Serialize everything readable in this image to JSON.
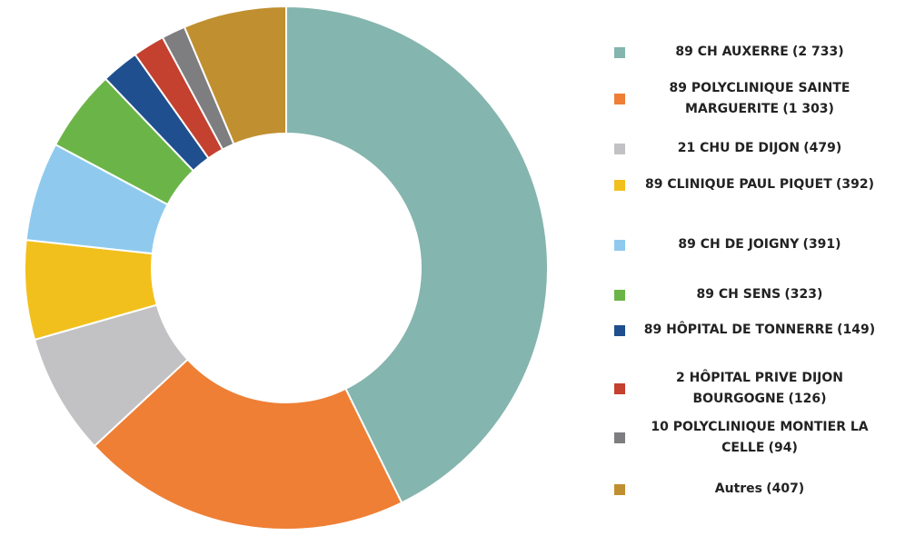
{
  "chart_data": {
    "type": "donut",
    "categories": [
      "89 CH AUXERRE",
      "89 POLYCLINIQUE SAINTE MARGUERITE",
      "21 CHU DE DIJON",
      "89 CLINIQUE PAUL PIQUET",
      "89 CH DE JOIGNY",
      "89 CH SENS",
      "89 HÔPITAL DE TONNERRE",
      "2 HÔPITAL PRIVE DIJON BOURGOGNE",
      "10 POLYCLINIQUE MONTIER LA CELLE",
      "Autres"
    ],
    "values": [
      2733,
      1303,
      479,
      392,
      391,
      323,
      149,
      126,
      94,
      407
    ],
    "value_labels": [
      "(2 733)",
      "(1 303)",
      "(479)",
      "(392)",
      "(391)",
      "(323)",
      "(149)",
      "(126)",
      "(94)",
      "(407)"
    ],
    "colors": [
      "#84b5ae",
      "#ee7f35",
      "#c2c2c4",
      "#f2c01d",
      "#8fcaee",
      "#6bb548",
      "#1f4f8e",
      "#c4402f",
      "#7e7e80",
      "#c08f2f"
    ],
    "legend": "right"
  }
}
